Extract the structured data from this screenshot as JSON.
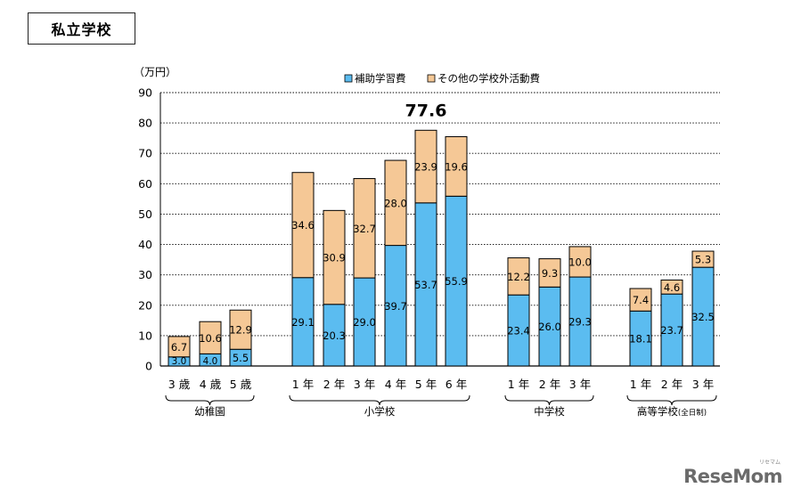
{
  "page_title": "私立学校",
  "watermark": "ReseMom",
  "watermark_sub": "リセマム",
  "chart_data": {
    "type": "bar",
    "stacked": true,
    "unit_label": "（万円）",
    "ylim": [
      0,
      90
    ],
    "yticks": [
      0,
      10,
      20,
      30,
      40,
      50,
      60,
      70,
      80,
      90
    ],
    "grid": "dotted horizontal",
    "legend_position": "top",
    "highlight_label": "77.6",
    "categories": [
      "3 歳",
      "4 歳",
      "5 歳",
      "1 年",
      "2 年",
      "3 年",
      "4 年",
      "5 年",
      "6 年",
      "1 年",
      "2 年",
      "3 年",
      "1 年",
      "2 年",
      "3 年"
    ],
    "groups": [
      {
        "label": "幼稚園",
        "count": 3
      },
      {
        "label": "小学校",
        "count": 6
      },
      {
        "label": "中学校",
        "count": 3
      },
      {
        "label": "高等学校",
        "label_suffix": "(全日制)",
        "count": 3
      }
    ],
    "series": [
      {
        "name": "補助学習費",
        "color": "#5bbcf0",
        "values": [
          3.0,
          4.0,
          5.5,
          29.1,
          20.3,
          29.0,
          39.7,
          53.7,
          55.9,
          23.4,
          26.0,
          29.3,
          18.1,
          23.7,
          32.5
        ]
      },
      {
        "name": "その他の学校外活動費",
        "color": "#f5c896",
        "values": [
          6.7,
          10.6,
          12.9,
          34.6,
          30.9,
          32.7,
          28.0,
          23.9,
          19.6,
          12.2,
          9.3,
          10.0,
          7.4,
          4.6,
          5.3
        ]
      }
    ]
  }
}
